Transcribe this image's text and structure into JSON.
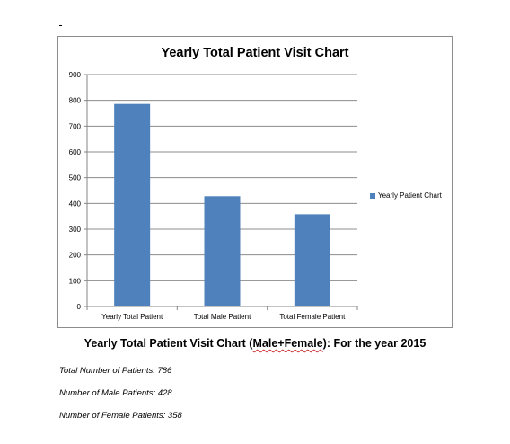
{
  "chart_data": {
    "type": "bar",
    "title": "Yearly Total Patient Visit Chart",
    "categories": [
      "Yearly Total  Patient",
      "Total Male  Patient",
      "Total Female  Patient"
    ],
    "series": [
      {
        "name": "Yearly Patient Chart",
        "values": [
          786,
          428,
          358
        ],
        "color": "#4f81bd"
      }
    ],
    "xlabel": "",
    "ylabel": "",
    "ylim": [
      0,
      900
    ],
    "yticks": [
      0,
      100,
      200,
      300,
      400,
      500,
      600,
      700,
      800,
      900
    ],
    "grid": true,
    "legend": "right"
  },
  "caption": {
    "before": "Yearly Total Patient Visit Chart (",
    "highlight": "Male+Female",
    "after": "): For the year 2015"
  },
  "stats": {
    "total": "Total Number of Patients: 786",
    "male": "Number of Male Patients: 428",
    "female": "Number of Female Patients: 358"
  }
}
